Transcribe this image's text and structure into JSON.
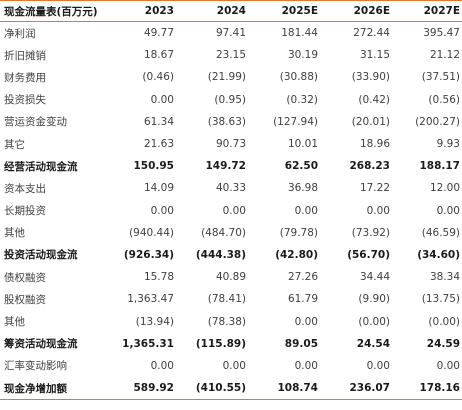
{
  "table": {
    "title": "现金流量表(百万元)",
    "years": [
      "2023",
      "2024",
      "2025E",
      "2026E",
      "2027E"
    ],
    "rows": [
      {
        "label": "净利润",
        "bold": false,
        "values": [
          "49.77",
          "97.41",
          "181.44",
          "272.44",
          "395.47"
        ]
      },
      {
        "label": "折旧摊销",
        "bold": false,
        "values": [
          "18.67",
          "23.15",
          "30.19",
          "31.15",
          "21.12"
        ]
      },
      {
        "label": "财务费用",
        "bold": false,
        "values": [
          "(0.46)",
          "(21.99)",
          "(30.88)",
          "(33.90)",
          "(37.51)"
        ]
      },
      {
        "label": "投资损失",
        "bold": false,
        "values": [
          "0.00",
          "(0.95)",
          "(0.32)",
          "(0.42)",
          "(0.56)"
        ]
      },
      {
        "label": "营运资金变动",
        "bold": false,
        "values": [
          "61.34",
          "(38.63)",
          "(127.94)",
          "(20.01)",
          "(200.27)"
        ]
      },
      {
        "label": "其它",
        "bold": false,
        "values": [
          "21.63",
          "90.73",
          "10.01",
          "18.96",
          "9.93"
        ]
      },
      {
        "label": "经营活动现金流",
        "bold": true,
        "values": [
          "150.95",
          "149.72",
          "62.50",
          "268.23",
          "188.17"
        ]
      },
      {
        "label": "资本支出",
        "bold": false,
        "values": [
          "14.09",
          "40.33",
          "36.98",
          "17.22",
          "12.00"
        ]
      },
      {
        "label": "长期投资",
        "bold": false,
        "values": [
          "0.00",
          "0.00",
          "0.00",
          "0.00",
          "0.00"
        ]
      },
      {
        "label": "其他",
        "bold": false,
        "values": [
          "(940.44)",
          "(484.70)",
          "(79.78)",
          "(73.92)",
          "(46.59)"
        ]
      },
      {
        "label": "投资活动现金流",
        "bold": true,
        "values": [
          "(926.34)",
          "(444.38)",
          "(42.80)",
          "(56.70)",
          "(34.60)"
        ]
      },
      {
        "label": "债权融资",
        "bold": false,
        "values": [
          "15.78",
          "40.89",
          "27.26",
          "34.44",
          "38.34"
        ]
      },
      {
        "label": "股权融资",
        "bold": false,
        "values": [
          "1,363.47",
          "(78.41)",
          "61.79",
          "(9.90)",
          "(13.75)"
        ]
      },
      {
        "label": "其他",
        "bold": false,
        "values": [
          "(13.94)",
          "(78.38)",
          "0.00",
          "(0.00)",
          "(0.00)"
        ]
      },
      {
        "label": "筹资活动现金流",
        "bold": true,
        "values": [
          "1,365.31",
          "(115.89)",
          "89.05",
          "24.54",
          "24.59"
        ]
      },
      {
        "label": "汇率变动影响",
        "bold": false,
        "values": [
          "0.00",
          "0.00",
          "0.00",
          "0.00",
          "0.00"
        ]
      },
      {
        "label": "现金净增加额",
        "bold": true,
        "values": [
          "589.92",
          "(410.55)",
          "108.74",
          "236.07",
          "178.16"
        ]
      }
    ]
  },
  "colors": {
    "rule": "#e07a2a",
    "text": "#404040",
    "bold_text": "#1a1a1a"
  }
}
